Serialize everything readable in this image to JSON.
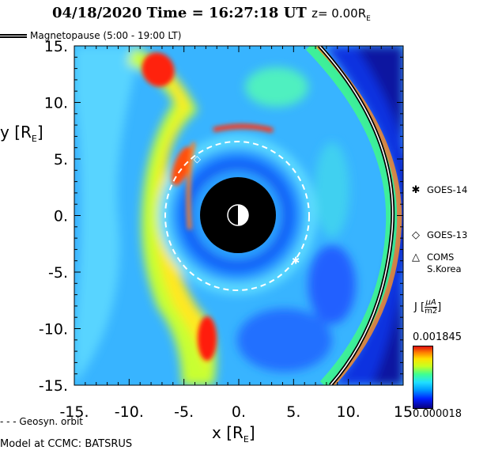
{
  "title": {
    "date": "04/18/2020",
    "time_label": "Time =",
    "time": "16:27:18",
    "unit": "UT",
    "z_text": "z= 0.00R",
    "z_sub": "E"
  },
  "magnetopause_legend": "Magnetopause (5:00 - 19:00 LT)",
  "axes": {
    "x_title": "x [R",
    "x_title_sub": "E",
    "x_title_end": "]",
    "y_title": "y [R",
    "y_title_sub": "E",
    "y_title_end": "]",
    "x_ticks": [
      "-15.",
      "-10.",
      "-5.",
      "0.",
      "5.",
      "10.",
      "15"
    ],
    "y_ticks": [
      "15.",
      "10.",
      "5.",
      "0.",
      "-5.",
      "-10.",
      "-15."
    ],
    "range": [
      -15,
      15
    ]
  },
  "satellites": [
    {
      "symbol": "✱",
      "name": "GOES-14",
      "icon": "asterisk-icon",
      "x": 5.2,
      "y": -4.0
    },
    {
      "symbol": "◇",
      "name": "GOES-13",
      "icon": "diamond-icon",
      "x": -3.8,
      "y": 5.0
    },
    {
      "symbol": "△",
      "name": "COMS",
      "name2": "S.Korea",
      "icon": "triangle-icon"
    }
  ],
  "colorbar": {
    "title": "J",
    "unit_num": "μA",
    "unit_den": "m2",
    "max": "0.001845",
    "min": "0.000018",
    "colors": [
      "#0a0080",
      "#0020ff",
      "#00a0ff",
      "#20e0ff",
      "#40ff90",
      "#c8ff20",
      "#ffe000",
      "#ff8000",
      "#e01010"
    ]
  },
  "geosyn_legend": "- - - Geosyn. orbit",
  "credit": "Model at CCMC: BATSRUS",
  "style": {
    "background_blue": "#0a3cff",
    "earth_color": "#000000"
  }
}
